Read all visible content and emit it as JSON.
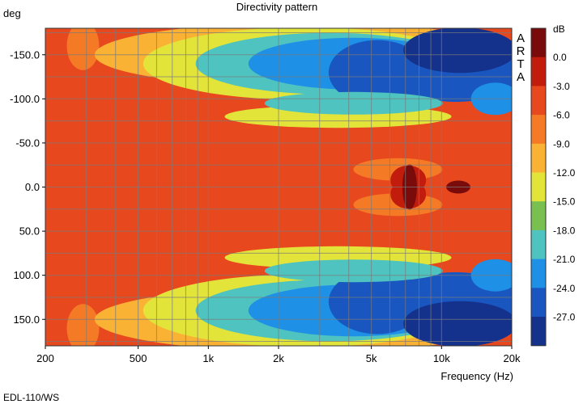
{
  "chart_data": {
    "type": "heatmap",
    "title": "Directivity pattern",
    "xlabel": "Frequency (Hz)",
    "ylabel": "deg",
    "x_scale": "log",
    "xlim": [
      200,
      20000
    ],
    "ylim": [
      -180,
      180
    ],
    "x_ticks": [
      {
        "value": 200,
        "label": "200"
      },
      {
        "value": 500,
        "label": "500"
      },
      {
        "value": 1000,
        "label": "1k"
      },
      {
        "value": 2000,
        "label": "2k"
      },
      {
        "value": 5000,
        "label": "5k"
      },
      {
        "value": 10000,
        "label": "10k"
      },
      {
        "value": 20000,
        "label": "20k"
      }
    ],
    "x_gridlines": [
      200,
      300,
      400,
      500,
      600,
      700,
      800,
      900,
      1000,
      2000,
      3000,
      4000,
      5000,
      6000,
      7000,
      8000,
      9000,
      10000,
      20000
    ],
    "y_ticks": [
      {
        "value": -150,
        "label": "-150.0"
      },
      {
        "value": -100,
        "label": "-100.0"
      },
      {
        "value": -50,
        "label": "-50.0"
      },
      {
        "value": 0,
        "label": "0.0"
      },
      {
        "value": 50,
        "label": "50.0"
      },
      {
        "value": 100,
        "label": "100.0"
      },
      {
        "value": 150,
        "label": "150.0"
      }
    ],
    "colorbar": {
      "label": "dB",
      "levels": [
        {
          "label": "",
          "color": "#7a0b0b"
        },
        {
          "label": "0.0",
          "color": "#c21d0c"
        },
        {
          "label": "-3.0",
          "color": "#e8481e"
        },
        {
          "label": "-6.0",
          "color": "#f57a25"
        },
        {
          "label": "-9.0",
          "color": "#f9b233"
        },
        {
          "label": "-12.0",
          "color": "#e3e43a"
        },
        {
          "label": "-15.0",
          "color": "#78c050"
        },
        {
          "label": "-18.0",
          "color": "#4fc3c0"
        },
        {
          "label": "-21.0",
          "color": "#1e90e6"
        },
        {
          "label": "-24.0",
          "color": "#1a56c0"
        },
        {
          "label": "-27.0",
          "color": "#14328c"
        }
      ]
    },
    "watermark": [
      "A",
      "R",
      "T",
      "A"
    ],
    "caption": "EDL-110/WS",
    "grid": true
  }
}
